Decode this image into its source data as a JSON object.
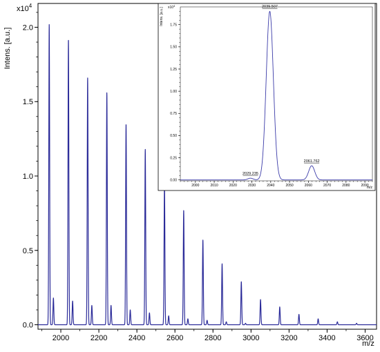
{
  "chart_data": [
    {
      "type": "line",
      "role": "main",
      "ylabel": "Intens. [a.u.]",
      "xlabel": "m/z",
      "y_multiplier": "x10",
      "y_multiplier_exp": "4",
      "xlim": [
        1880,
        3660
      ],
      "ylim": [
        -0.03,
        2.16
      ],
      "x_ticks": [
        2000,
        2200,
        2400,
        2600,
        2800,
        3000,
        3200,
        3400,
        3600
      ],
      "y_ticks": [
        0.0,
        0.5,
        1.0,
        1.5,
        2.0
      ],
      "y_tick_labels": [
        "0.0",
        "0.5",
        "1.0",
        "1.5",
        "2.0"
      ],
      "grid": false,
      "line_color": "#2b2b99",
      "peaks": [
        {
          "x": 1939,
          "y": 2.02
        },
        {
          "x": 1961,
          "y": 0.18
        },
        {
          "x": 2040,
          "y": 1.92
        },
        {
          "x": 2062,
          "y": 0.16
        },
        {
          "x": 2141,
          "y": 1.66
        },
        {
          "x": 2163,
          "y": 0.13
        },
        {
          "x": 2242,
          "y": 1.56
        },
        {
          "x": 2264,
          "y": 0.13
        },
        {
          "x": 2343,
          "y": 1.35
        },
        {
          "x": 2365,
          "y": 0.1
        },
        {
          "x": 2444,
          "y": 1.18
        },
        {
          "x": 2466,
          "y": 0.08
        },
        {
          "x": 2545,
          "y": 0.95
        },
        {
          "x": 2567,
          "y": 0.06
        },
        {
          "x": 2646,
          "y": 0.77
        },
        {
          "x": 2668,
          "y": 0.04
        },
        {
          "x": 2747,
          "y": 0.57
        },
        {
          "x": 2769,
          "y": 0.03
        },
        {
          "x": 2848,
          "y": 0.41
        },
        {
          "x": 2870,
          "y": 0.02
        },
        {
          "x": 2949,
          "y": 0.29
        },
        {
          "x": 2971,
          "y": 0.01
        },
        {
          "x": 3050,
          "y": 0.17
        },
        {
          "x": 3151,
          "y": 0.12
        },
        {
          "x": 3252,
          "y": 0.07
        },
        {
          "x": 3353,
          "y": 0.04
        },
        {
          "x": 3454,
          "y": 0.02
        },
        {
          "x": 3555,
          "y": 0.01
        }
      ]
    },
    {
      "type": "line",
      "role": "inset",
      "ylabel": "Intens. [a.u.]",
      "xlabel": "m/z",
      "y_multiplier": "x10",
      "y_multiplier_exp": "4",
      "xlim": [
        1992,
        2094
      ],
      "ylim": [
        -0.01,
        1.95
      ],
      "x_ticks": [
        2000,
        2010,
        2020,
        2030,
        2040,
        2050,
        2060,
        2070,
        2080,
        2090
      ],
      "y_ticks": [
        0.0,
        0.25,
        0.5,
        0.75,
        1.0,
        1.25,
        1.5,
        1.75
      ],
      "y_tick_labels": [
        "0.00",
        "0.25",
        "0.50",
        "0.75",
        "1.00",
        "1.25",
        "1.50",
        "1.75"
      ],
      "grid": false,
      "line_color": "#3a3aa8",
      "peaks": [
        {
          "x": 2029.235,
          "y": 0.02,
          "sigma": 1.4
        },
        {
          "x": 2039.507,
          "y": 1.9,
          "sigma": 1.9
        },
        {
          "x": 2061.762,
          "y": 0.16,
          "sigma": 1.6
        }
      ],
      "peak_labels": [
        "2029.235",
        "2039.507",
        "2061.762"
      ]
    }
  ]
}
